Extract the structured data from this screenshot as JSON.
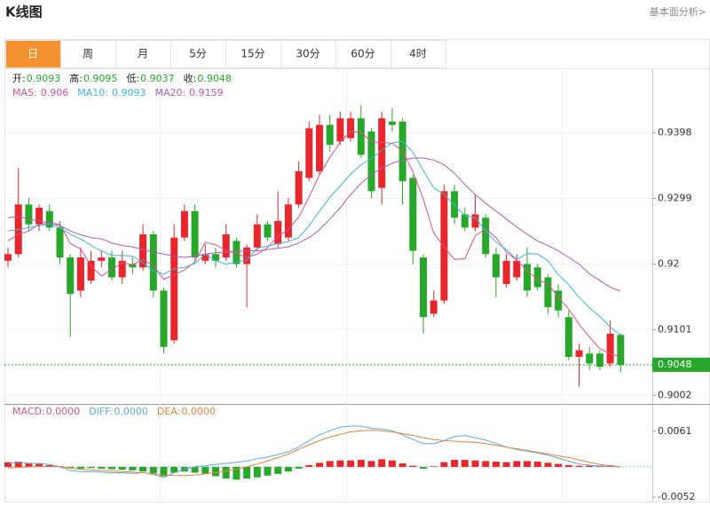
{
  "header": {
    "title": "K线图",
    "link": "基本面分析>"
  },
  "tabs": [
    "日",
    "周",
    "月",
    "5分",
    "15分",
    "30分",
    "60分",
    "4时"
  ],
  "active_tab": 0,
  "chart_data": [
    {
      "type": "candlestick",
      "ohlc_labels": [
        "开:",
        "高:",
        "低:",
        "收:"
      ],
      "up_color": "#e8262b",
      "down_color": "#27a82a",
      "ylim": [
        0.8989,
        0.9494
      ],
      "yticks": [
        0.9002,
        0.9101,
        0.92,
        0.9299,
        0.9398
      ],
      "open": [
        0.9205,
        0.9215,
        0.929,
        0.926,
        0.928,
        0.9255,
        0.921,
        0.916,
        0.9175,
        0.9205,
        0.921,
        0.918,
        0.92,
        0.9195,
        0.9245,
        0.916,
        0.9085,
        0.924,
        0.928,
        0.9205,
        0.9215,
        0.921,
        0.9235,
        0.92,
        0.9225,
        0.926,
        0.923,
        0.924,
        0.929,
        0.933,
        0.934,
        0.941,
        0.9385,
        0.939,
        0.942,
        0.94,
        0.9315,
        0.9415,
        0.9415,
        0.933,
        0.921,
        0.9125,
        0.9145,
        0.931,
        0.9275,
        0.9255,
        0.927,
        0.9215,
        0.917,
        0.918,
        0.92,
        0.9195,
        0.918,
        0.916,
        0.912,
        0.906,
        0.9065,
        0.9065,
        0.905,
        0.9093
      ],
      "high": [
        0.9225,
        0.9345,
        0.93,
        0.929,
        0.929,
        0.9265,
        0.9215,
        0.9225,
        0.922,
        0.922,
        0.922,
        0.922,
        0.921,
        0.926,
        0.925,
        0.9165,
        0.926,
        0.929,
        0.929,
        0.923,
        0.9225,
        0.926,
        0.924,
        0.923,
        0.9275,
        0.9265,
        0.931,
        0.93,
        0.9355,
        0.9415,
        0.9425,
        0.9425,
        0.943,
        0.943,
        0.944,
        0.9405,
        0.943,
        0.9435,
        0.942,
        0.9335,
        0.9215,
        0.916,
        0.932,
        0.932,
        0.9285,
        0.9305,
        0.9275,
        0.9225,
        0.9215,
        0.9215,
        0.9225,
        0.92,
        0.9185,
        0.917,
        0.913,
        0.908,
        0.9075,
        0.907,
        0.9115,
        0.9095
      ],
      "low": [
        0.9195,
        0.921,
        0.925,
        0.925,
        0.925,
        0.92,
        0.909,
        0.915,
        0.917,
        0.9195,
        0.9175,
        0.917,
        0.9185,
        0.919,
        0.915,
        0.9065,
        0.908,
        0.9235,
        0.9205,
        0.92,
        0.9195,
        0.9205,
        0.9195,
        0.9135,
        0.922,
        0.9235,
        0.9225,
        0.9235,
        0.9285,
        0.9325,
        0.9335,
        0.937,
        0.938,
        0.9385,
        0.936,
        0.93,
        0.929,
        0.94,
        0.929,
        0.92,
        0.9095,
        0.912,
        0.914,
        0.926,
        0.925,
        0.925,
        0.921,
        0.915,
        0.9165,
        0.9175,
        0.915,
        0.916,
        0.9125,
        0.912,
        0.9055,
        0.9015,
        0.904,
        0.904,
        0.9045,
        0.9037
      ],
      "close": [
        0.9215,
        0.929,
        0.926,
        0.9285,
        0.9255,
        0.921,
        0.9155,
        0.921,
        0.9205,
        0.921,
        0.918,
        0.9205,
        0.9195,
        0.9245,
        0.916,
        0.9075,
        0.924,
        0.928,
        0.921,
        0.9215,
        0.9205,
        0.9245,
        0.92,
        0.9225,
        0.926,
        0.924,
        0.9265,
        0.929,
        0.934,
        0.9405,
        0.941,
        0.938,
        0.942,
        0.942,
        0.9365,
        0.931,
        0.942,
        0.941,
        0.9325,
        0.922,
        0.912,
        0.9145,
        0.931,
        0.927,
        0.9255,
        0.9275,
        0.9215,
        0.918,
        0.9205,
        0.9205,
        0.916,
        0.9165,
        0.9135,
        0.913,
        0.906,
        0.907,
        0.905,
        0.9045,
        0.9095,
        0.9048
      ],
      "series": [
        {
          "name": "MA5:",
          "color": "#d8508a",
          "values": [
            0.9235,
            0.9245,
            0.925,
            0.926,
            0.9262,
            0.926,
            0.9231,
            0.9223,
            0.9197,
            0.9182,
            0.9192,
            0.9202,
            0.9199,
            0.9207,
            0.9198,
            0.9177,
            0.9184,
            0.9191,
            0.9203,
            0.9233,
            0.9229,
            0.9221,
            0.9216,
            0.921,
            0.9215,
            0.9225,
            0.9242,
            0.9252,
            0.9271,
            0.9301,
            0.9335,
            0.9361,
            0.9384,
            0.94,
            0.9399,
            0.9384,
            0.9384,
            0.9382,
            0.9371,
            0.9339,
            0.9298,
            0.9247,
            0.9226,
            0.9207,
            0.9208,
            0.9243,
            0.9253,
            0.924,
            0.9218,
            0.9206,
            0.919,
            0.9177,
            0.917,
            0.915,
            0.9132,
            0.9109,
            0.909,
            0.9072,
            0.9065,
            0.906
          ]
        },
        {
          "name": "MA10:",
          "color": "#3cb6d8",
          "values": [
            0.925,
            0.9252,
            0.9255,
            0.9258,
            0.926,
            0.9255,
            0.9245,
            0.9238,
            0.9228,
            0.922,
            0.9213,
            0.9213,
            0.9212,
            0.9202,
            0.919,
            0.9185,
            0.9193,
            0.9195,
            0.9201,
            0.9215,
            0.9205,
            0.92,
            0.9203,
            0.9206,
            0.9224,
            0.9227,
            0.9231,
            0.9234,
            0.924,
            0.9258,
            0.928,
            0.9301,
            0.9318,
            0.9336,
            0.935,
            0.9359,
            0.9372,
            0.9383,
            0.9385,
            0.9369,
            0.9341,
            0.9315,
            0.9305,
            0.9289,
            0.9273,
            0.927,
            0.925,
            0.9233,
            0.9222,
            0.9207,
            0.9216,
            0.9215,
            0.9205,
            0.9184,
            0.9169,
            0.915,
            0.9134,
            0.9121,
            0.9105,
            0.9093
          ]
        },
        {
          "name": "MA20:",
          "color": "#b05ab8",
          "values": [
            0.927,
            0.9272,
            0.9268,
            0.9265,
            0.9262,
            0.9258,
            0.925,
            0.9244,
            0.924,
            0.9238,
            0.9232,
            0.9228,
            0.9226,
            0.9222,
            0.9218,
            0.9215,
            0.9212,
            0.921,
            0.9212,
            0.9215,
            0.9217,
            0.9218,
            0.9219,
            0.922,
            0.922,
            0.9222,
            0.9224,
            0.9226,
            0.9232,
            0.924,
            0.9252,
            0.9268,
            0.9285,
            0.9305,
            0.9322,
            0.9335,
            0.9345,
            0.9352,
            0.9357,
            0.936,
            0.936,
            0.9357,
            0.935,
            0.9337,
            0.932,
            0.9305,
            0.9292,
            0.928,
            0.9268,
            0.9256,
            0.9245,
            0.9235,
            0.9228,
            0.922,
            0.921,
            0.92,
            0.9185,
            0.9175,
            0.9165,
            0.9159
          ]
        }
      ]
    },
    {
      "type": "macd",
      "ylim": [
        -0.0061,
        0.0108
      ],
      "yticks": [
        -0.0052,
        0.0061
      ],
      "up_color": "#e8262b",
      "down_color": "#27a82a",
      "series": [
        {
          "name": "MACD:",
          "last_label": "0.0000",
          "kind": "bar",
          "color": "#d8508a",
          "values": [
            0.0008,
            0.0009,
            0.0006,
            0.0005,
            0.0003,
            0.0001,
            -0.0002,
            -0.0003,
            -0.0002,
            -0.0003,
            -0.0004,
            -0.0005,
            -0.0006,
            -0.0008,
            -0.0011,
            -0.0016,
            -0.001,
            -0.0008,
            -0.001,
            -0.0012,
            -0.0016,
            -0.002,
            -0.0022,
            -0.002,
            -0.0018,
            -0.0015,
            -0.0012,
            -0.0008,
            -0.0003,
            0.0003,
            0.0007,
            0.001,
            0.0011,
            0.0011,
            0.0012,
            0.001,
            0.0013,
            0.0011,
            0.0006,
            0.0002,
            -0.0003,
            0.0001,
            0.0008,
            0.0012,
            0.0012,
            0.0011,
            0.001,
            0.0009,
            0.0008,
            0.001,
            0.001,
            0.0009,
            0.0007,
            0.0005,
            0.0003,
            0.0002,
            0.0002,
            0.0002,
            0.0003,
            0
          ]
        },
        {
          "name": "DIFF:",
          "last_label": "0.0000",
          "kind": "line",
          "color": "#5aa8e0",
          "values": [
            0.0005,
            0.0008,
            0.0006,
            0.0006,
            0.0004,
            0,
            -0.0006,
            -0.0008,
            -0.0008,
            -0.0009,
            -0.001,
            -0.001,
            -0.0011,
            -0.001,
            -0.0013,
            -0.0018,
            -0.001,
            -0.0004,
            0,
            0.0002,
            0.0004,
            0.0006,
            0.0008,
            0.001,
            0.0014,
            0.0017,
            0.0021,
            0.0026,
            0.0034,
            0.0045,
            0.0055,
            0.0062,
            0.0068,
            0.007,
            0.007,
            0.0066,
            0.0065,
            0.0062,
            0.0055,
            0.0047,
            0.004,
            0.004,
            0.0045,
            0.0052,
            0.0054,
            0.005,
            0.0046,
            0.004,
            0.0034,
            0.003,
            0.0027,
            0.0024,
            0.002,
            0.0015,
            0.001,
            0.0005,
            0.0003,
            0.0001,
            0.0001,
            0
          ]
        },
        {
          "name": "DEA:",
          "last_label": "0.0000",
          "kind": "line",
          "color": "#e8823a",
          "values": [
            -0.0002,
            -0.0001,
            0,
            0.0001,
            0.0001,
            0,
            -0.0002,
            -0.0004,
            -0.0005,
            -0.0006,
            -0.0007,
            -0.0008,
            -0.0009,
            -0.001,
            -0.0012,
            -0.0014,
            -0.0015,
            -0.0015,
            -0.0014,
            -0.0012,
            -0.001,
            -0.0007,
            -0.0004,
            0,
            0.0005,
            0.001,
            0.0016,
            0.0022,
            0.003,
            0.0038,
            0.0045,
            0.0051,
            0.0056,
            0.006,
            0.0062,
            0.0063,
            0.0062,
            0.006,
            0.0057,
            0.0054,
            0.005,
            0.0047,
            0.0045,
            0.0044,
            0.0043,
            0.0042,
            0.004,
            0.0037,
            0.0034,
            0.0031,
            0.0028,
            0.0025,
            0.0022,
            0.0019,
            0.0016,
            0.0012,
            0.0008,
            0.0004,
            0.0002,
            0
          ]
        }
      ]
    }
  ]
}
